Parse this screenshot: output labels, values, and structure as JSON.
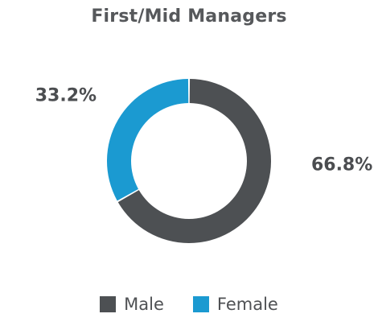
{
  "chart_data": {
    "type": "pie",
    "title": "First/Mid Managers",
    "slices": [
      {
        "name": "Male",
        "value": 66.8,
        "label": "66.8%",
        "color": "#4d5053"
      },
      {
        "name": "Female",
        "value": 33.2,
        "label": "33.2%",
        "color": "#1b9ad1"
      }
    ],
    "donut": true,
    "legend_position": "bottom"
  }
}
